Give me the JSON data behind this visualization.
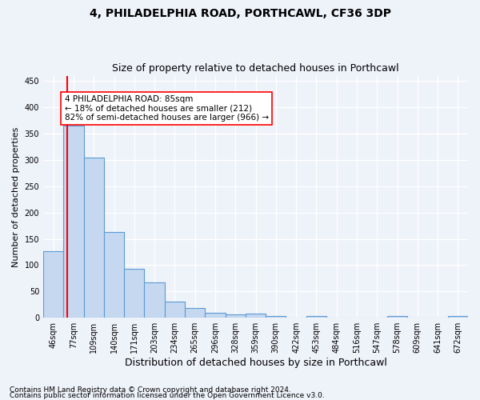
{
  "title": "4, PHILADELPHIA ROAD, PORTHCAWL, CF36 3DP",
  "subtitle": "Size of property relative to detached houses in Porthcawl",
  "xlabel": "Distribution of detached houses by size in Porthcawl",
  "ylabel": "Number of detached properties",
  "bar_values": [
    127,
    365,
    305,
    163,
    93,
    67,
    30,
    18,
    9,
    6,
    8,
    4,
    0,
    4,
    0,
    0,
    0,
    4,
    0,
    0,
    4
  ],
  "bar_labels": [
    "46sqm",
    "77sqm",
    "109sqm",
    "140sqm",
    "171sqm",
    "203sqm",
    "234sqm",
    "265sqm",
    "296sqm",
    "328sqm",
    "359sqm",
    "390sqm",
    "422sqm",
    "453sqm",
    "484sqm",
    "516sqm",
    "547sqm",
    "578sqm",
    "609sqm",
    "641sqm",
    "672sqm"
  ],
  "bar_color": "#c5d8f0",
  "bar_edge_color": "#5b9bd5",
  "bar_edge_width": 0.8,
  "red_line_x": 1.18,
  "annotation_line1": "4 PHILADELPHIA ROAD: 85sqm",
  "annotation_line2": "← 18% of detached houses are smaller (212)",
  "annotation_line3": "82% of semi-detached houses are larger (966) →",
  "ylim": [
    0,
    460
  ],
  "yticks": [
    0,
    50,
    100,
    150,
    200,
    250,
    300,
    350,
    400,
    450
  ],
  "footer_line1": "Contains HM Land Registry data © Crown copyright and database right 2024.",
  "footer_line2": "Contains public sector information licensed under the Open Government Licence v3.0.",
  "background_color": "#eef2f9",
  "grid_color": "#ffffff",
  "title_fontsize": 10,
  "subtitle_fontsize": 9,
  "xlabel_fontsize": 9,
  "ylabel_fontsize": 8,
  "tick_fontsize": 7,
  "annotation_fontsize": 7.5,
  "footer_fontsize": 6.5
}
